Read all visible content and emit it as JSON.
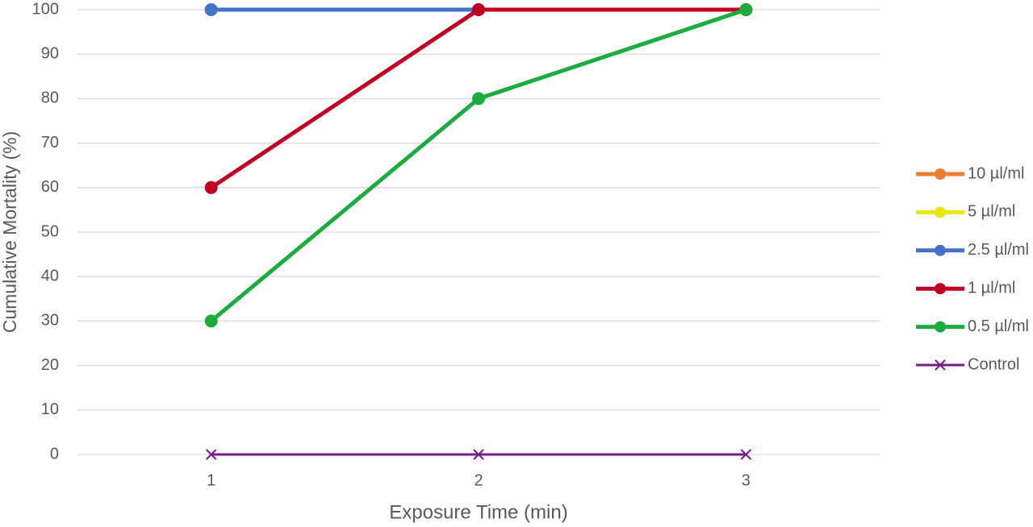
{
  "chart_data": {
    "type": "line",
    "x_label": "Exposure Time (min)",
    "y_label": "Cumulative Mortality (%)",
    "categories": [
      "1",
      "2",
      "3"
    ],
    "series": [
      {
        "name": "10 µl/ml",
        "color": "#ed7d31",
        "marker": "circle",
        "values": [
          100,
          100,
          100
        ]
      },
      {
        "name": "5 µl/ml",
        "color": "#e8e813",
        "marker": "circle",
        "values": [
          100,
          100,
          100
        ]
      },
      {
        "name": "2.5 µl/ml",
        "color": "#4472c4",
        "marker": "circle",
        "values": [
          100,
          100,
          100
        ]
      },
      {
        "name": "1 µl/ml",
        "color": "#c00020",
        "marker": "circle",
        "values": [
          60,
          100,
          100
        ]
      },
      {
        "name": "0.5 µl/ml",
        "color": "#1aac3c",
        "marker": "circle",
        "values": [
          30,
          80,
          100
        ]
      },
      {
        "name": "Control",
        "color": "#7a1a8a",
        "marker": "x",
        "values": [
          0,
          0,
          0
        ]
      }
    ],
    "ylim": [
      0,
      100
    ],
    "yticks": [
      0,
      10,
      20,
      30,
      40,
      50,
      60,
      70,
      80,
      90,
      100
    ],
    "grid": true,
    "legend": "right"
  }
}
